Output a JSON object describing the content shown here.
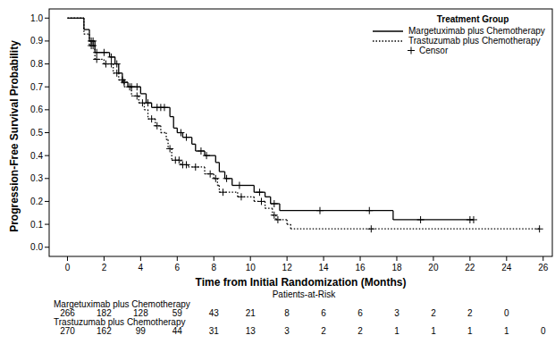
{
  "chart_data": {
    "type": "step",
    "xlabel": "Time from Initial Randomization (Months)",
    "ylabel": "Progression-Free Survival Probability",
    "xlim": [
      -1,
      26.5
    ],
    "ylim": [
      -0.04,
      1.04
    ],
    "xticks": [
      0,
      2,
      4,
      6,
      8,
      10,
      12,
      14,
      16,
      18,
      20,
      22,
      24,
      26
    ],
    "yticks": [
      {
        "value": 0,
        "label": "0.0"
      },
      {
        "value": 0.1,
        "label": "0.1"
      },
      {
        "value": 0.2,
        "label": "0.2"
      },
      {
        "value": 0.3,
        "label": "0.3"
      },
      {
        "value": 0.4,
        "label": "0.4"
      },
      {
        "value": 0.5,
        "label": "0.5"
      },
      {
        "value": 0.6,
        "label": "0.6"
      },
      {
        "value": 0.7,
        "label": "0.7"
      },
      {
        "value": 0.8,
        "label": "0.8"
      },
      {
        "value": 0.9,
        "label": "0.9"
      },
      {
        "value": 1,
        "label": "1.0"
      }
    ],
    "grid": false,
    "legend": "top-right",
    "legend_title": "Treatment Group",
    "censor_label": "Censor",
    "marker": "plus",
    "series": [
      {
        "name": "Margetuximab plus Chemotherapy",
        "color": "#000000",
        "line_style": "solid",
        "x": [
          0,
          0.9,
          1.2,
          1.5,
          2.3,
          2.6,
          2.8,
          3.0,
          3.3,
          4.0,
          4.3,
          4.6,
          5.6,
          5.8,
          6.0,
          6.3,
          6.8,
          7.0,
          7.5,
          8.1,
          8.3,
          8.6,
          9.0,
          10.2,
          10.8,
          11.1,
          11.6,
          17.8
        ],
        "values": [
          1.0,
          0.95,
          0.9,
          0.85,
          0.83,
          0.8,
          0.76,
          0.72,
          0.7,
          0.67,
          0.63,
          0.61,
          0.57,
          0.52,
          0.5,
          0.48,
          0.45,
          0.42,
          0.4,
          0.37,
          0.33,
          0.3,
          0.27,
          0.24,
          0.22,
          0.19,
          0.16,
          0.12
        ],
        "censor_x": [
          1.3,
          1.4,
          1.6,
          2.0,
          2.4,
          2.7,
          3.1,
          3.5,
          3.8,
          4.4,
          4.9,
          5.1,
          5.3,
          6.2,
          6.5,
          7.3,
          7.6,
          8.7,
          9.4,
          10.5,
          11.3,
          13.8,
          16.5,
          19.3,
          22.0,
          22.2
        ]
      },
      {
        "name": "Trastuzumab plus Chemotherapy",
        "color": "#000000",
        "line_style": "dotted",
        "x": [
          0,
          0.9,
          1.2,
          1.5,
          2.0,
          2.5,
          2.8,
          3.1,
          3.5,
          3.9,
          4.2,
          4.4,
          4.8,
          5.1,
          5.4,
          5.5,
          5.7,
          6.2,
          6.6,
          7.5,
          8.0,
          8.2,
          8.3,
          9.3,
          10.2,
          10.8,
          11.2,
          11.4,
          12.0,
          12.2
        ],
        "values": [
          1.0,
          0.93,
          0.88,
          0.82,
          0.8,
          0.76,
          0.73,
          0.7,
          0.66,
          0.63,
          0.6,
          0.56,
          0.53,
          0.5,
          0.47,
          0.43,
          0.38,
          0.36,
          0.35,
          0.32,
          0.3,
          0.27,
          0.24,
          0.22,
          0.2,
          0.17,
          0.14,
          0.12,
          0.1,
          0.08
        ],
        "censor_x": [
          1.3,
          1.4,
          1.6,
          2.1,
          2.4,
          2.7,
          3.0,
          3.4,
          3.8,
          4.1,
          4.6,
          4.9,
          5.6,
          5.9,
          6.1,
          6.3,
          6.5,
          7.0,
          7.8,
          8.1,
          8.5,
          9.5,
          10.6,
          11.3,
          11.5,
          16.6,
          25.8
        ]
      }
    ],
    "risk_table": {
      "title": "Patients-at-Risk",
      "times": [
        0,
        2,
        4,
        6,
        8,
        10,
        12,
        14,
        16,
        18,
        20,
        22,
        24,
        26
      ],
      "rows": [
        {
          "name": "Margetuximab plus Chemotherapy",
          "values": [
            266,
            182,
            128,
            59,
            43,
            21,
            8,
            6,
            6,
            3,
            2,
            2,
            0,
            null
          ]
        },
        {
          "name": "Trastuzumab plus Chemotherapy",
          "values": [
            270,
            162,
            99,
            44,
            31,
            13,
            3,
            2,
            2,
            1,
            1,
            1,
            1,
            0
          ]
        }
      ]
    }
  }
}
